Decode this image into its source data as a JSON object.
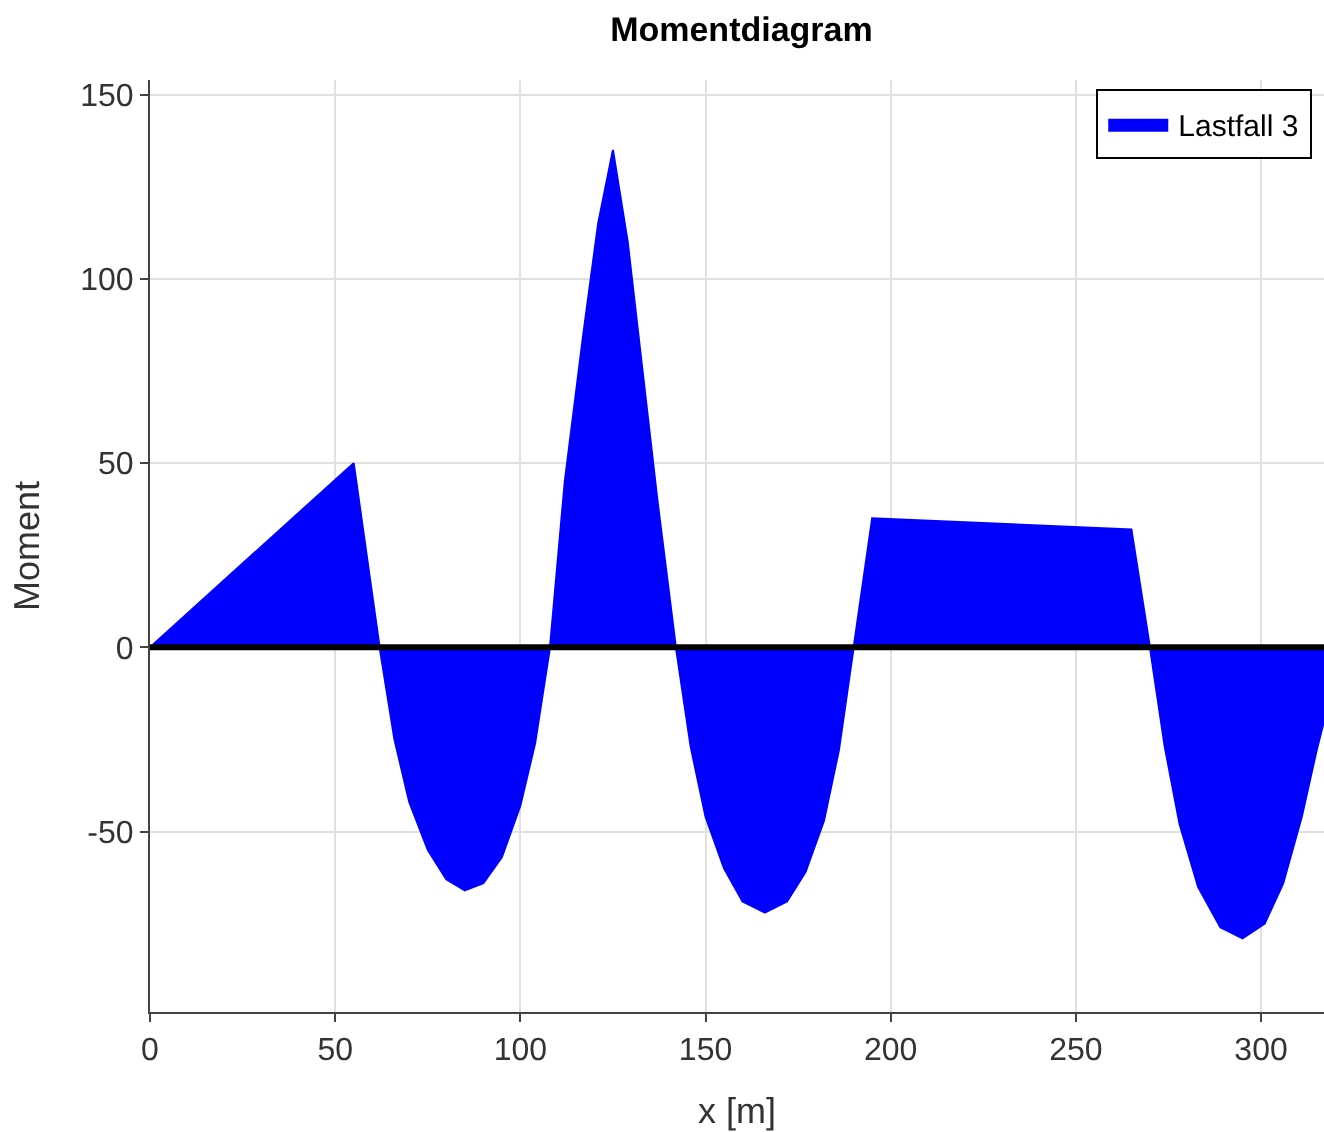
{
  "chart_data": {
    "type": "area",
    "title": "Momentdiagram",
    "xlabel": "x [m]",
    "ylabel": "Moment",
    "series": [
      {
        "name": "Lastfall 3",
        "color": "#0000ff",
        "x": [
          0,
          55,
          62,
          66,
          70,
          75,
          80,
          85,
          90,
          95,
          100,
          104,
          108,
          112,
          117,
          121,
          125,
          129,
          133,
          137,
          142,
          146,
          150,
          155,
          160,
          166,
          172,
          177,
          182,
          186,
          190,
          195,
          265,
          270,
          274,
          278,
          283,
          289,
          295,
          301,
          306,
          311,
          315,
          317
        ],
        "values": [
          0,
          50,
          0,
          -25,
          -42,
          -55,
          -63,
          -66,
          -64,
          -57,
          -43,
          -26,
          0,
          45,
          85,
          115,
          135,
          110,
          75,
          40,
          0,
          -27,
          -46,
          -60,
          -69,
          -72,
          -69,
          -61,
          -47,
          -28,
          0,
          35,
          32,
          0,
          -27,
          -48,
          -65,
          -76,
          -79,
          -75,
          -64,
          -46,
          -28,
          -20
        ]
      }
    ],
    "xlim": [
      0,
      317
    ],
    "xticks": [
      0,
      50,
      100,
      150,
      200,
      250,
      300
    ],
    "ylim": [
      -99,
      154
    ],
    "yticks": [
      -50,
      0,
      50,
      100,
      150
    ],
    "ref_lines": [
      {
        "axis": "y",
        "value": 0,
        "color": "#000000"
      }
    ],
    "grid": true,
    "legend": "top right"
  }
}
